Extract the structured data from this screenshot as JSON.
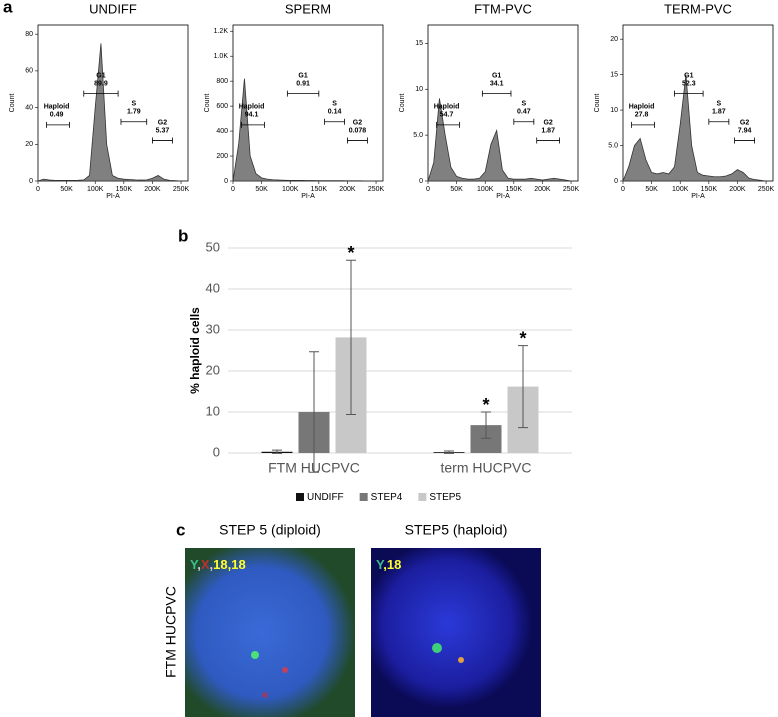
{
  "panel_labels": [
    "a",
    "b",
    "c"
  ],
  "chart_data": [
    {
      "type": "area",
      "title": "UNDIFF",
      "x_label": "PI-A",
      "y_label": "Count",
      "color": "#808080",
      "x": [
        0,
        10000,
        20000,
        30000,
        40000,
        50000,
        60000,
        70000,
        80000,
        90000,
        100000,
        110000,
        120000,
        130000,
        140000,
        150000,
        160000,
        170000,
        180000,
        190000,
        200000,
        210000,
        220000,
        230000,
        240000,
        250000,
        260000
      ],
      "values": [
        0,
        1,
        0.5,
        0.3,
        0.3,
        0.3,
        0.3,
        0.4,
        0.6,
        3,
        40,
        75,
        20,
        3,
        1.5,
        1,
        0.8,
        0.6,
        0.5,
        0.6,
        1.5,
        3,
        1,
        0.3,
        0.2,
        0,
        0
      ],
      "xlim": [
        0,
        262144
      ],
      "ylim": [
        0,
        85
      ],
      "xticks": [
        0,
        {
          "value": 50000,
          "label": "50K"
        },
        {
          "value": 100000,
          "label": "100K"
        },
        {
          "value": 150000,
          "label": "150K"
        },
        {
          "value": 200000,
          "label": "200K"
        },
        {
          "value": 250000,
          "label": "250K"
        }
      ],
      "yticks": [
        0,
        20,
        40,
        60,
        80
      ],
      "gates": [
        {
          "name": "Haploid",
          "value": 0.49,
          "range": [
            15000,
            55000
          ]
        },
        {
          "name": "G1",
          "value": 89.9,
          "range": [
            80000,
            140000
          ]
        },
        {
          "name": "S",
          "value": 1.79,
          "range": [
            145000,
            190000
          ]
        },
        {
          "name": "G2",
          "value": 5.37,
          "range": [
            200000,
            235000
          ]
        }
      ]
    },
    {
      "type": "area",
      "title": "SPERM",
      "x_label": "PI-A",
      "y_label": "Count",
      "color": "#808080",
      "x": [
        0,
        10000,
        20000,
        30000,
        40000,
        50000,
        60000,
        70000,
        80000,
        90000,
        100000,
        110000,
        120000,
        130000,
        140000,
        150000,
        160000,
        170000,
        180000,
        190000,
        200000,
        210000,
        220000,
        230000,
        240000,
        250000,
        260000
      ],
      "values": [
        0,
        300,
        820,
        200,
        60,
        25,
        15,
        10,
        8,
        6,
        5,
        5,
        5,
        4,
        4,
        3,
        3,
        3,
        3,
        3,
        2,
        2,
        2,
        1,
        1,
        0,
        0
      ],
      "xlim": [
        0,
        262144
      ],
      "ylim": [
        0,
        1250
      ],
      "xticks": [
        0,
        {
          "value": 50000,
          "label": "50K"
        },
        {
          "value": 100000,
          "label": "100K"
        },
        {
          "value": 150000,
          "label": "150K"
        },
        {
          "value": 200000,
          "label": "200K"
        },
        {
          "value": 250000,
          "label": "250K"
        }
      ],
      "yticks": [
        0,
        200,
        400,
        600,
        800,
        {
          "value": 1000,
          "label": "1.0K"
        },
        {
          "value": 1200,
          "label": "1.2K"
        }
      ],
      "gates": [
        {
          "name": "Haploid",
          "value": 94.1,
          "range": [
            15000,
            55000
          ]
        },
        {
          "name": "G1",
          "value": 0.91,
          "range": [
            95000,
            150000
          ]
        },
        {
          "name": "S",
          "value": 0.14,
          "range": [
            160000,
            195000
          ]
        },
        {
          "name": "G2",
          "value": 0.078,
          "range": [
            200000,
            235000
          ]
        }
      ]
    },
    {
      "type": "area",
      "title": "FTM-PVC",
      "x_label": "PI-A",
      "y_label": "Count",
      "color": "#808080",
      "x": [
        0,
        10000,
        20000,
        30000,
        40000,
        50000,
        60000,
        70000,
        80000,
        90000,
        100000,
        110000,
        120000,
        130000,
        140000,
        150000,
        160000,
        170000,
        180000,
        190000,
        200000,
        210000,
        220000,
        230000,
        240000,
        250000,
        260000
      ],
      "values": [
        0,
        2,
        9,
        5,
        1.5,
        0.5,
        0.3,
        0.2,
        0.2,
        0.3,
        1,
        4,
        5.5,
        1.2,
        0.3,
        0.2,
        0.2,
        0.2,
        0.3,
        0.2,
        0.1,
        0.2,
        0.3,
        0.2,
        0.1,
        0,
        0
      ],
      "xlim": [
        0,
        262144
      ],
      "ylim": [
        0,
        17
      ],
      "xticks": [
        0,
        {
          "value": 50000,
          "label": "50K"
        },
        {
          "value": 100000,
          "label": "100K"
        },
        {
          "value": 150000,
          "label": "150K"
        },
        {
          "value": 200000,
          "label": "200K"
        },
        {
          "value": 250000,
          "label": "250K"
        }
      ],
      "yticks": [
        0,
        {
          "value": 5,
          "label": "5.0"
        },
        10,
        15
      ],
      "gates": [
        {
          "name": "Haploid",
          "value": 54.7,
          "range": [
            15000,
            55000
          ]
        },
        {
          "name": "G1",
          "value": 34.1,
          "range": [
            95000,
            145000
          ]
        },
        {
          "name": "S",
          "value": 0.47,
          "range": [
            150000,
            185000
          ]
        },
        {
          "name": "G2",
          "value": 1.87,
          "range": [
            190000,
            230000
          ]
        }
      ]
    },
    {
      "type": "area",
      "title": "TERM-PVC",
      "x_label": "PI-A",
      "y_label": "Count",
      "color": "#808080",
      "x": [
        0,
        10000,
        20000,
        30000,
        40000,
        50000,
        60000,
        70000,
        80000,
        90000,
        100000,
        110000,
        120000,
        130000,
        140000,
        150000,
        160000,
        170000,
        180000,
        190000,
        200000,
        210000,
        220000,
        230000,
        240000,
        250000,
        260000
      ],
      "values": [
        0,
        2,
        5,
        6,
        3,
        1.2,
        1,
        1.2,
        1,
        2,
        8,
        15,
        5,
        1.2,
        0.8,
        0.7,
        0.6,
        0.6,
        0.7,
        1,
        1.6,
        1.2,
        0.4,
        0.2,
        0.1,
        0,
        0
      ],
      "xlim": [
        0,
        262144
      ],
      "ylim": [
        0,
        22
      ],
      "xticks": [
        0,
        {
          "value": 50000,
          "label": "50K"
        },
        {
          "value": 100000,
          "label": "100K"
        },
        {
          "value": 150000,
          "label": "150K"
        },
        {
          "value": 200000,
          "label": "200K"
        },
        {
          "value": 250000,
          "label": "250K"
        }
      ],
      "yticks": [
        0,
        {
          "value": 5,
          "label": "5.0"
        },
        10,
        15,
        20
      ],
      "gates": [
        {
          "name": "Haploid",
          "value": 27.8,
          "range": [
            15000,
            55000
          ]
        },
        {
          "name": "G1",
          "value": 52.3,
          "range": [
            90000,
            140000
          ]
        },
        {
          "name": "S",
          "value": 1.87,
          "range": [
            150000,
            185000
          ]
        },
        {
          "name": "G2",
          "value": 7.94,
          "range": [
            195000,
            230000
          ]
        }
      ]
    },
    {
      "type": "bar",
      "y_label": "% haploid cells",
      "categories": [
        "FTM HUCPVC",
        "term HUCPVC"
      ],
      "series": [
        {
          "name": "UNDIFF",
          "color": "#111111",
          "values": [
            0.3,
            0.2
          ],
          "errors": [
            0.4,
            0.3
          ]
        },
        {
          "name": "STEP4",
          "color": "#777777",
          "values": [
            10,
            6.8
          ],
          "errors": [
            14.7,
            3.2
          ]
        },
        {
          "name": "STEP5",
          "color": "#c8c8c8",
          "values": [
            28.2,
            16.2
          ],
          "errors": [
            18.8,
            10
          ]
        }
      ],
      "ylim": [
        0,
        50
      ],
      "yticks": [
        0,
        10,
        20,
        30,
        40,
        50
      ],
      "grid": true,
      "legend": "bottom",
      "annotations": [
        {
          "text": "*",
          "series": "STEP5",
          "category": "FTM HUCPVC"
        },
        {
          "text": "*",
          "series": "STEP4",
          "category": "term HUCPVC"
        },
        {
          "text": "*",
          "series": "STEP5",
          "category": "term HUCPVC"
        }
      ]
    }
  ],
  "images": {
    "row_label": "FTM HUCPVC",
    "panels": [
      {
        "title": "STEP 5 (diploid)",
        "probes": [
          {
            "text": "Y",
            "color": "#3fbf8f"
          },
          {
            "text": ",",
            "color": "#cfcfcf"
          },
          {
            "text": "X",
            "color": "#c0302a"
          },
          {
            "text": ",",
            "color": "#cfcfcf"
          },
          {
            "text": "18,18",
            "color": "#ffff30"
          }
        ]
      },
      {
        "title": "STEP5 (haploid)",
        "probes": [
          {
            "text": "Y",
            "color": "#3fbf8f"
          },
          {
            "text": ",18",
            "color": "#ffff30"
          }
        ]
      }
    ]
  }
}
